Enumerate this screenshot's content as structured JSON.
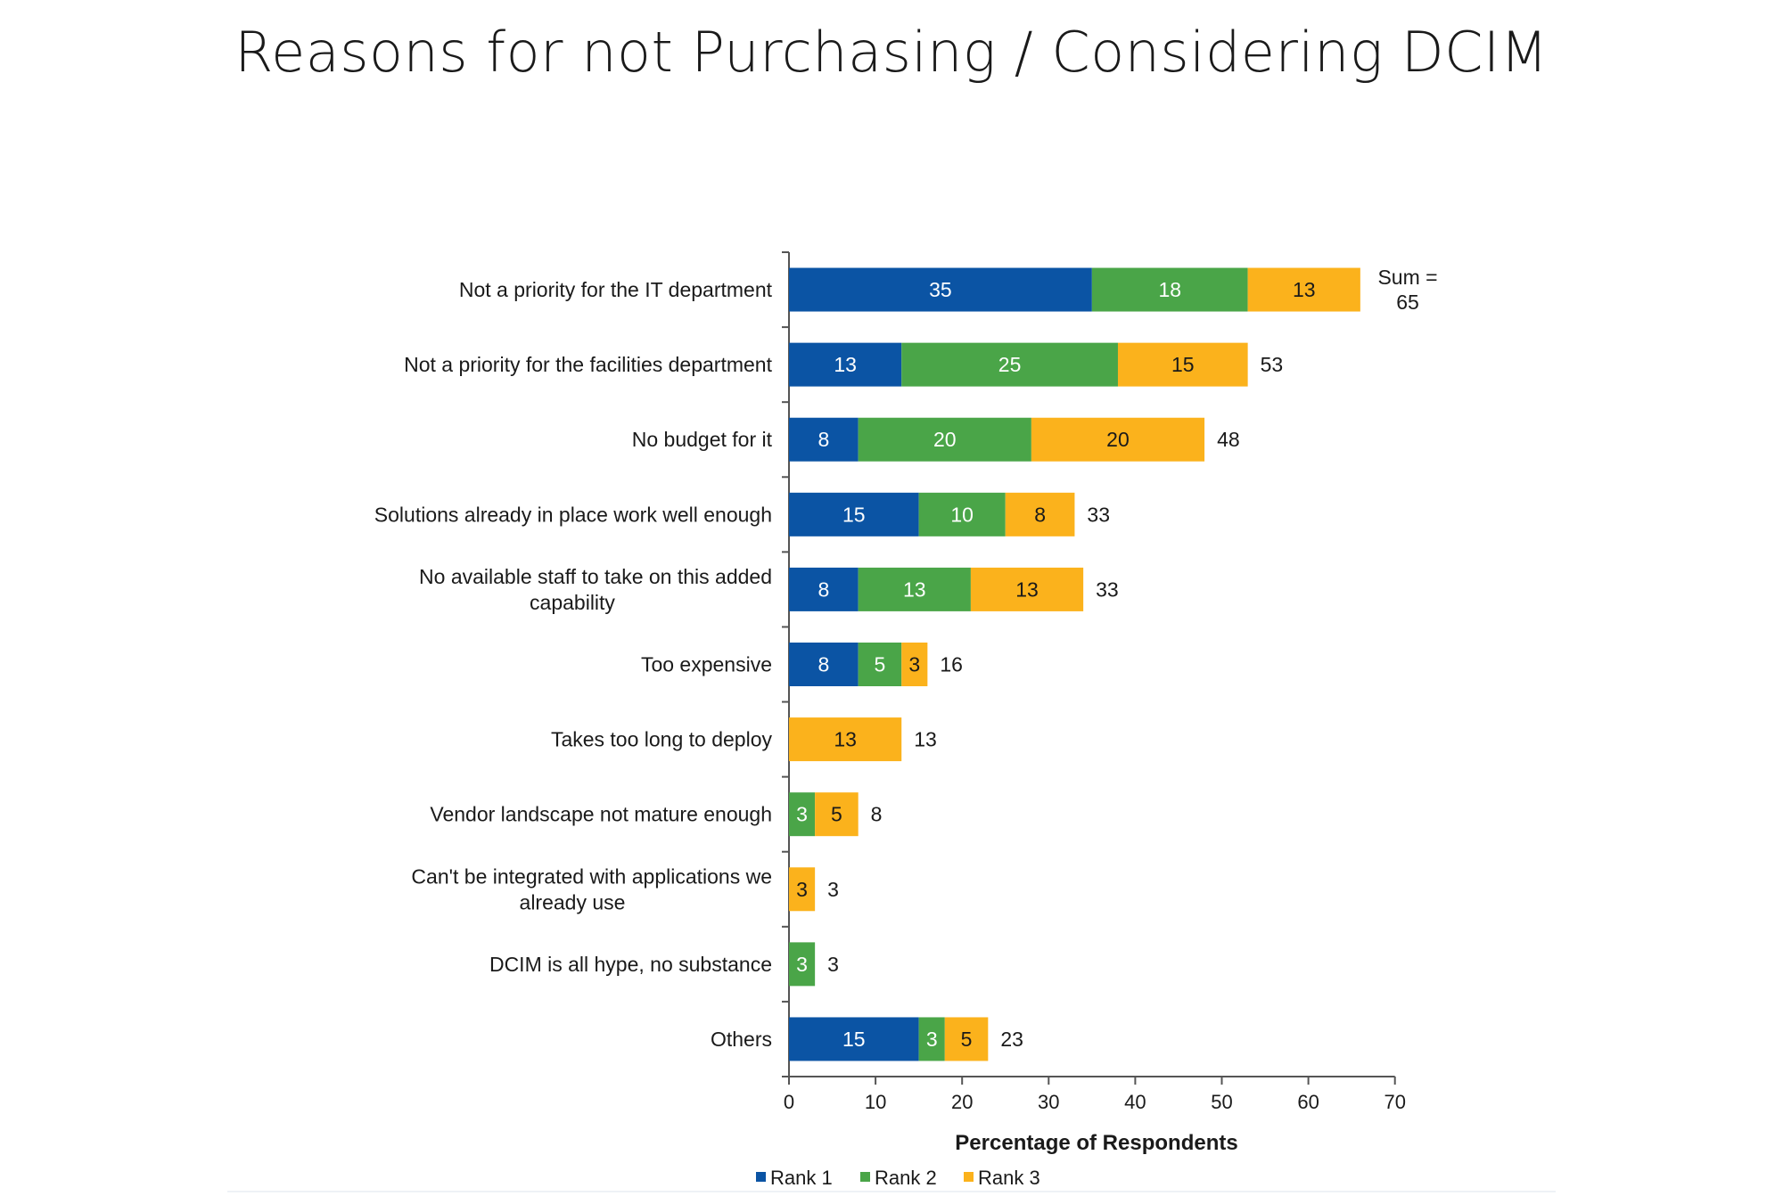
{
  "slide": {
    "title": "Reasons for not Purchasing / Considering DCIM"
  },
  "chart_data": {
    "type": "bar",
    "orientation": "horizontal",
    "stacked": true,
    "categories": [
      "Not a priority for the IT department",
      "Not a priority for the facilities department",
      "No budget for it",
      "Solutions already in place work well enough",
      "No available staff to take on this added capability",
      "Too expensive",
      "Takes too long to deploy",
      "Vendor landscape not mature enough",
      "Can't be integrated with applications we already use",
      "DCIM is all hype, no substance",
      "Others"
    ],
    "category_lines": [
      [
        "Not a priority for the IT department"
      ],
      [
        "Not a priority for the facilities department"
      ],
      [
        "No budget for it"
      ],
      [
        "Solutions already in place work well enough"
      ],
      [
        "No available staff to take on this added",
        "capability"
      ],
      [
        "Too expensive"
      ],
      [
        "Takes too long to deploy"
      ],
      [
        "Vendor landscape not mature enough"
      ],
      [
        "Can't be integrated with applications we",
        "already use"
      ],
      [
        "DCIM is all hype, no substance"
      ],
      [
        "Others"
      ]
    ],
    "series": [
      {
        "name": "Rank 1",
        "color": "#0b54a4",
        "label_color": "#ffffff",
        "values": [
          35,
          13,
          8,
          15,
          8,
          8,
          0,
          0,
          0,
          0,
          15
        ]
      },
      {
        "name": "Rank 2",
        "color": "#4aa548",
        "label_color": "#ffffff",
        "values": [
          18,
          25,
          20,
          10,
          13,
          5,
          0,
          3,
          0,
          3,
          3
        ]
      },
      {
        "name": "Rank 3",
        "color": "#fbb21c",
        "label_color": "#1a1a1a",
        "values": [
          13,
          15,
          20,
          8,
          13,
          3,
          13,
          5,
          3,
          0,
          5
        ]
      }
    ],
    "totals": [
      "65",
      "53",
      "48",
      "33",
      "33",
      "16",
      "13",
      "8",
      "3",
      "3",
      "23"
    ],
    "total_annotation": [
      "Sum =",
      "65"
    ],
    "xlabel": "Percentage of Respondents",
    "ylabel": "",
    "xlim": [
      0,
      70
    ],
    "xticks": [
      0,
      10,
      20,
      30,
      40,
      50,
      60,
      70
    ],
    "grid": false,
    "legend": "bottom"
  }
}
